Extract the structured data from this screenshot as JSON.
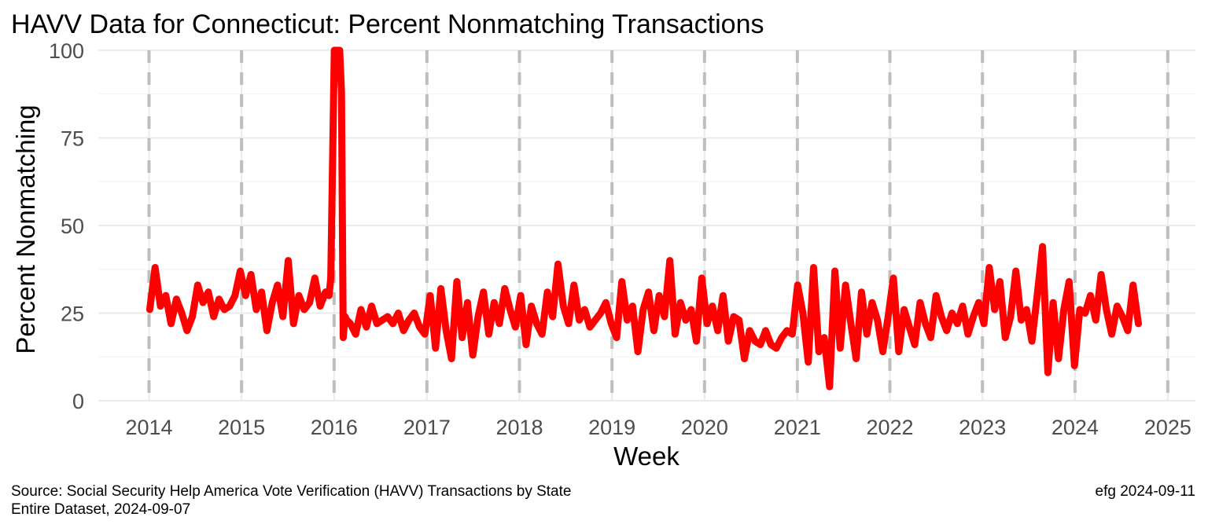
{
  "chart_data": {
    "type": "line",
    "title": "HAVV Data for Connecticut:  Percent Nonmatching Transactions",
    "xlabel": "Week",
    "ylabel": "Percent Nonmatching",
    "x_ticks": [
      "2014",
      "2015",
      "2016",
      "2017",
      "2018",
      "2019",
      "2020",
      "2021",
      "2022",
      "2023",
      "2024",
      "2025"
    ],
    "y_ticks": [
      0,
      25,
      50,
      75,
      100
    ],
    "xlim": [
      "2013-06-15",
      "2025-04-20"
    ],
    "ylim": [
      0,
      100
    ],
    "grid": true,
    "legend": "none",
    "line_color": "#ff0000",
    "year_line_color": "#bebebe",
    "series": [
      {
        "x": [
          "2014-01-04",
          "2014-01-25",
          "2014-02-15",
          "2014-03-08",
          "2014-03-29",
          "2014-04-19",
          "2014-05-10",
          "2014-05-31",
          "2014-06-21",
          "2014-07-12",
          "2014-08-02",
          "2014-08-23",
          "2014-09-13",
          "2014-10-04",
          "2014-10-25",
          "2014-11-15",
          "2014-12-06",
          "2014-12-27",
          "2015-01-17",
          "2015-02-07",
          "2015-02-28",
          "2015-03-21",
          "2015-04-11",
          "2015-05-02",
          "2015-05-23",
          "2015-06-13",
          "2015-07-04",
          "2015-07-25",
          "2015-08-15",
          "2015-09-05",
          "2015-09-26",
          "2015-10-17",
          "2015-11-07",
          "2015-11-28",
          "2015-12-12",
          "2015-12-19",
          "2016-01-02",
          "2016-01-09",
          "2016-01-16",
          "2016-01-23",
          "2016-01-30",
          "2016-02-06",
          "2016-02-13",
          "2016-02-20",
          "2016-03-05",
          "2016-03-26",
          "2016-04-16",
          "2016-05-07",
          "2016-05-28",
          "2016-06-18",
          "2016-07-09",
          "2016-07-30",
          "2016-08-20",
          "2016-09-10",
          "2016-10-01",
          "2016-10-22",
          "2016-11-12",
          "2016-12-03",
          "2016-12-24",
          "2017-01-14",
          "2017-02-04",
          "2017-02-25",
          "2017-03-18",
          "2017-04-08",
          "2017-04-29",
          "2017-05-20",
          "2017-06-10",
          "2017-07-01",
          "2017-07-22",
          "2017-08-12",
          "2017-09-02",
          "2017-09-23",
          "2017-10-14",
          "2017-11-04",
          "2017-11-25",
          "2017-12-16",
          "2018-01-06",
          "2018-01-27",
          "2018-02-17",
          "2018-03-10",
          "2018-03-31",
          "2018-04-21",
          "2018-05-12",
          "2018-06-02",
          "2018-06-23",
          "2018-07-14",
          "2018-08-04",
          "2018-08-25",
          "2018-09-15",
          "2018-10-06",
          "2018-10-27",
          "2018-11-17",
          "2018-12-08",
          "2018-12-29",
          "2019-01-19",
          "2019-02-09",
          "2019-03-02",
          "2019-03-23",
          "2019-04-13",
          "2019-05-04",
          "2019-05-25",
          "2019-06-15",
          "2019-07-06",
          "2019-07-27",
          "2019-08-17",
          "2019-09-07",
          "2019-09-28",
          "2019-10-19",
          "2019-11-09",
          "2019-11-30",
          "2019-12-21",
          "2020-01-11",
          "2020-02-01",
          "2020-02-22",
          "2020-03-14",
          "2020-04-04",
          "2020-04-25",
          "2020-05-16",
          "2020-06-06",
          "2020-06-27",
          "2020-07-18",
          "2020-08-08",
          "2020-08-29",
          "2020-09-19",
          "2020-10-10",
          "2020-10-31",
          "2020-11-21",
          "2020-12-12",
          "2021-01-02",
          "2021-01-23",
          "2021-02-13",
          "2021-03-06",
          "2021-03-27",
          "2021-04-17",
          "2021-05-08",
          "2021-05-29",
          "2021-06-19",
          "2021-07-10",
          "2021-07-31",
          "2021-08-21",
          "2021-09-11",
          "2021-10-02",
          "2021-10-23",
          "2021-11-13",
          "2021-12-04",
          "2021-12-25",
          "2022-01-15",
          "2022-02-05",
          "2022-02-26",
          "2022-03-19",
          "2022-04-09",
          "2022-04-30",
          "2022-05-21",
          "2022-06-11",
          "2022-07-02",
          "2022-07-23",
          "2022-08-13",
          "2022-09-03",
          "2022-09-24",
          "2022-10-15",
          "2022-11-05",
          "2022-11-26",
          "2022-12-17",
          "2023-01-07",
          "2023-01-28",
          "2023-02-18",
          "2023-03-11",
          "2023-04-01",
          "2023-04-22",
          "2023-05-13",
          "2023-06-03",
          "2023-06-24",
          "2023-07-15",
          "2023-08-05",
          "2023-08-26",
          "2023-09-16",
          "2023-10-07",
          "2023-10-28",
          "2023-11-18",
          "2023-12-09",
          "2023-12-30",
          "2024-01-20",
          "2024-02-10",
          "2024-03-02",
          "2024-03-23",
          "2024-04-13",
          "2024-05-04",
          "2024-05-25",
          "2024-06-15",
          "2024-07-06",
          "2024-07-27",
          "2024-08-17",
          "2024-09-07"
        ],
        "values": [
          26,
          38,
          27,
          30,
          22,
          29,
          25,
          20,
          24,
          33,
          28,
          31,
          24,
          29,
          26,
          27,
          30,
          37,
          30,
          36,
          26,
          31,
          20,
          28,
          33,
          24,
          40,
          22,
          30,
          26,
          28,
          35,
          27,
          31,
          30,
          35,
          100,
          100,
          100,
          100,
          88,
          18,
          24,
          23,
          22,
          19,
          26,
          21,
          27,
          22,
          23,
          24,
          22,
          25,
          20,
          23,
          25,
          21,
          19,
          30,
          15,
          32,
          20,
          12,
          34,
          18,
          28,
          13,
          24,
          31,
          19,
          28,
          22,
          32,
          26,
          21,
          30,
          16,
          27,
          22,
          19,
          31,
          24,
          39,
          27,
          22,
          33,
          23,
          26,
          21,
          23,
          25,
          28,
          22,
          18,
          34,
          23,
          27,
          14,
          26,
          31,
          20,
          30,
          24,
          40,
          19,
          28,
          23,
          26,
          17,
          35,
          22,
          27,
          20,
          30,
          17,
          24,
          23,
          12,
          20,
          17,
          16,
          20,
          16,
          15,
          18,
          20,
          19,
          33,
          25,
          11,
          38,
          14,
          18,
          4,
          37,
          15,
          33,
          22,
          12,
          31,
          19,
          28,
          23,
          14,
          24,
          35,
          14,
          26,
          21,
          16,
          28,
          22,
          18,
          30,
          24,
          20,
          25,
          22,
          27,
          19,
          24,
          28,
          22,
          38,
          26,
          34,
          18,
          24,
          37,
          23,
          26,
          17,
          30,
          44,
          8,
          28,
          12,
          26,
          34,
          10,
          26,
          25,
          30,
          23,
          36,
          26,
          19,
          27,
          24,
          20,
          33,
          22
        ]
      }
    ]
  },
  "caption_left": [
    "Source:  Social Security Help America Vote Verification (HAVV) Transactions by State",
    "Entire Dataset, 2024-09-07"
  ],
  "caption_right": "efg 2024-09-11"
}
